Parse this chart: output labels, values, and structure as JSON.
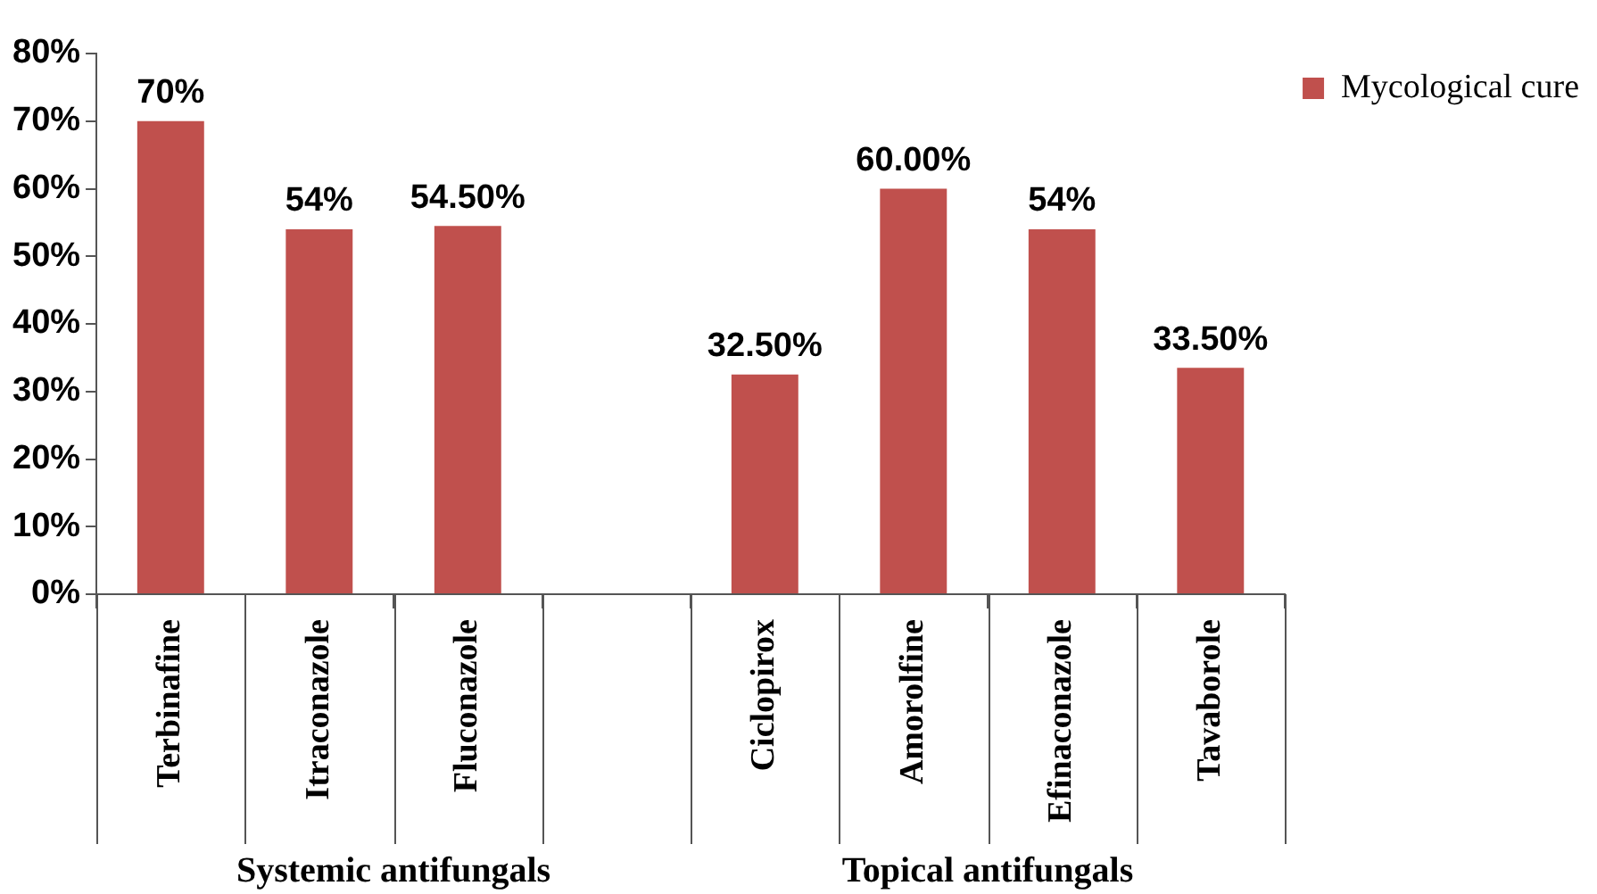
{
  "chart_data": {
    "type": "bar",
    "categories": [
      "Terbinafine",
      "Itraconazole",
      "Fluconazole",
      null,
      "Ciclopirox",
      "Amorolfine",
      "Efinaconazole",
      "Tavaborole"
    ],
    "series": [
      {
        "name": "Mycological cure",
        "color": "#c0504d",
        "values": [
          70,
          54,
          54.5,
          null,
          32.5,
          60,
          54,
          33.5
        ],
        "value_labels": [
          "70%",
          "54%",
          "54.50%",
          null,
          "32.50%",
          "60.00%",
          "54%",
          "33.50%"
        ]
      }
    ],
    "ylim": [
      0,
      80
    ],
    "yticks": [
      {
        "value": 0,
        "label": "0%"
      },
      {
        "value": 10,
        "label": "10%"
      },
      {
        "value": 20,
        "label": "20%"
      },
      {
        "value": 30,
        "label": "30%"
      },
      {
        "value": 40,
        "label": "40%"
      },
      {
        "value": 50,
        "label": "50%"
      },
      {
        "value": 60,
        "label": "60%"
      },
      {
        "value": 70,
        "label": "70%"
      },
      {
        "value": 80,
        "label": "80%"
      }
    ],
    "grid": false,
    "legend": "top right",
    "annotations": [
      "Systemic antifungals",
      "Topical antifungals"
    ]
  }
}
